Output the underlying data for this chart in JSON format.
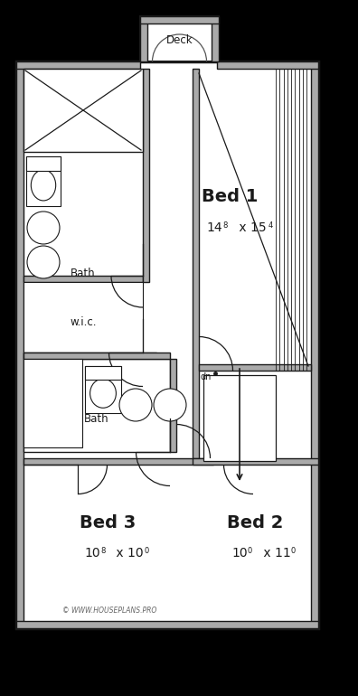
{
  "bg": "#000000",
  "gray": "#aaaaaa",
  "white": "#ffffff",
  "black": "#1a1a1a",
  "watermark": "© WWW.HOUSEPLANS.PRO",
  "bed1_label": "Bed 1",
  "bed1_dim1": "14",
  "bed1_sup1": "8",
  "bed1_x": " x 15",
  "bed1_sup2": "4",
  "bed2_label": "Bed 2",
  "bed2_dim": "10",
  "bed2_sup1": "0",
  "bed2_x": " x 11",
  "bed2_sup2": "0",
  "bed3_label": "Bed 3",
  "bed3_dim": "10",
  "bed3_sup1": "8",
  "bed3_x": " x 10",
  "bed3_sup2": "0",
  "bath_label": "Bath",
  "wic_label": "w.i.c.",
  "dn_label": "dn",
  "deck_label": "Deck",
  "label_fs": 14,
  "dim_fs": 9,
  "small_fs": 8.5,
  "wm_fs": 5.5
}
